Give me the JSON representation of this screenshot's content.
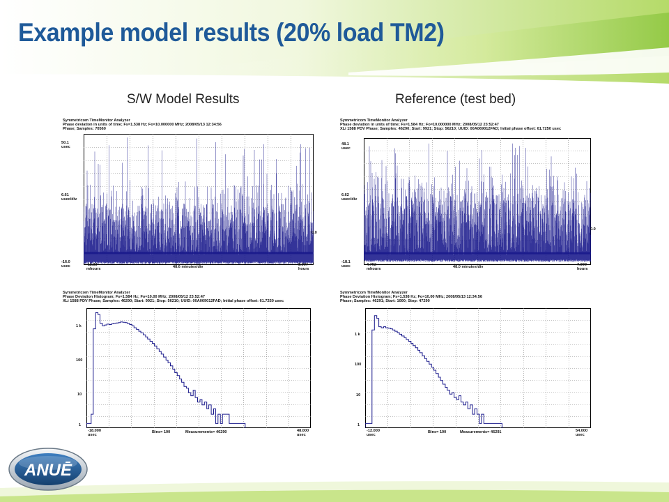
{
  "slide": {
    "title": "Example model results (20% load TM2)",
    "caption_left": "S/W Model Results",
    "caption_right": "Reference (test bed)",
    "logo_text": "ANUĒ",
    "colors": {
      "title": "#1f5a99",
      "trace": "#1a1a8c",
      "accent_green": "#8cc63f"
    }
  },
  "chart_data": [
    {
      "type": "line",
      "name": "model-phase",
      "header": [
        "Symmetricom TimeMonitor Analyzer",
        "Phase deviation in units of time;   Fs=1.538 Hz; Fo=10.000000 MHz; 2008/05/13 12:34:56",
        "Phase;   Samples: 70560"
      ],
      "y_top": "50.1",
      "y_top_unit": "usec",
      "y_mid": "6.61",
      "y_mid_unit": "usec/div",
      "y_bottom": "-16.0",
      "y_bottom_unit": "usec",
      "zero_label": "0.0",
      "x_left": "-11.33",
      "x_left_unit": "mhours",
      "x_mid": "48.6 minutes/div",
      "x_right": "8.007",
      "x_right_unit": "hours",
      "ylim": [
        -16.0,
        50.1
      ],
      "noise": {
        "floor": -15.5,
        "band_low": -11,
        "band_high": 15,
        "spike_max": 50.1,
        "spike_typ": 25
      }
    },
    {
      "type": "line",
      "name": "reference-phase",
      "header": [
        "Symmetricom TimeMonitor Analyzer",
        "Phase deviation in units of time;   Fs=1.584 Hz; Fo=10.000000 MHz; 2008/05/12  23:52:47",
        "XLi 1588 PDV Phase;   Samples: 46290;   Start: 9921;   Stop: 56210;   UUID: 00A069012FAD;   Initial phase offset: 61.7250 usec"
      ],
      "y_top": "48.1",
      "y_top_unit": "usec",
      "y_mid": "6.62",
      "y_mid_unit": "usec/div",
      "y_bottom": "-18.1",
      "y_bottom_unit": "usec",
      "zero_label": "0.0",
      "x_left": "4.792",
      "x_left_unit": "mhours",
      "x_mid": "48.0 minutes/div",
      "x_right": "7.999",
      "x_right_unit": "hours",
      "ylim": [
        -18.1,
        48.1
      ],
      "noise": {
        "floor": -16.5,
        "band_low": -13,
        "band_high": 20,
        "spike_max": 46,
        "spike_typ": 30
      }
    },
    {
      "type": "histogram",
      "name": "model-histogram",
      "header": [
        "Symmetricom TimeMonitor Analyzer",
        "Phase Deviation Histogram;   Fs=1.584 Hz; Fo=10.00 MHz; 2008/05/12  23:52:47",
        "XLi 1588 PDV Phase;   Samples: 46290;   Start: 9921;   Stop: 56210;   UUID: 00A069012FAD;   Initial phase offset: 61.7250 usec"
      ],
      "y_scale": "log",
      "y_ticks": [
        "1 k",
        "100",
        "10",
        "1"
      ],
      "x_left": "-18.000",
      "x_left_unit": "usec",
      "bins_label": "Bins= 100",
      "measurements_label": "Measurements= 46290",
      "x_right": "48.000",
      "x_right_unit": "usec",
      "xlim": [
        -18.0,
        48.0
      ],
      "points": [
        [
          -18.0,
          1
        ],
        [
          -17.3,
          1
        ],
        [
          -16.7,
          2
        ],
        [
          -16.0,
          1200
        ],
        [
          -15.3,
          4000
        ],
        [
          -14.7,
          3500
        ],
        [
          -14.0,
          1800
        ],
        [
          -13.3,
          1500
        ],
        [
          -12.7,
          1600
        ],
        [
          -12.0,
          1700
        ],
        [
          -11.3,
          1650
        ],
        [
          -10.7,
          1750
        ],
        [
          -10.0,
          1800
        ],
        [
          -9.3,
          1850
        ],
        [
          -8.7,
          1900
        ],
        [
          -8.0,
          2000
        ],
        [
          -7.3,
          1950
        ],
        [
          -6.7,
          1900
        ],
        [
          -6.0,
          1800
        ],
        [
          -5.3,
          1650
        ],
        [
          -4.7,
          1500
        ],
        [
          -4.0,
          1300
        ],
        [
          -3.3,
          1150
        ],
        [
          -2.7,
          1000
        ],
        [
          -2.0,
          880
        ],
        [
          -1.3,
          760
        ],
        [
          -0.7,
          650
        ],
        [
          0.0,
          560
        ],
        [
          0.7,
          470
        ],
        [
          1.3,
          400
        ],
        [
          2.0,
          330
        ],
        [
          2.7,
          270
        ],
        [
          3.3,
          220
        ],
        [
          4.0,
          180
        ],
        [
          4.7,
          145
        ],
        [
          5.3,
          115
        ],
        [
          6.0,
          95
        ],
        [
          6.7,
          75
        ],
        [
          7.3,
          58
        ],
        [
          8.0,
          45
        ],
        [
          8.7,
          36
        ],
        [
          9.3,
          28
        ],
        [
          10.0,
          22
        ],
        [
          10.7,
          16
        ],
        [
          11.3,
          14
        ],
        [
          12.0,
          10
        ],
        [
          12.7,
          8
        ],
        [
          13.3,
          12
        ],
        [
          14.0,
          7
        ],
        [
          14.7,
          5
        ],
        [
          15.3,
          6
        ],
        [
          16.0,
          4
        ],
        [
          16.7,
          5
        ],
        [
          17.3,
          3
        ],
        [
          18.0,
          4
        ],
        [
          18.7,
          2
        ],
        [
          19.3,
          3
        ],
        [
          20.0,
          1
        ],
        [
          20.7,
          2
        ],
        [
          21.3,
          1
        ],
        [
          22.0,
          2
        ],
        [
          22.7,
          2
        ],
        [
          23.3,
          2
        ],
        [
          24.0,
          1
        ],
        [
          24.7,
          1
        ],
        [
          25.3,
          1
        ],
        [
          26.0,
          1
        ],
        [
          26.7,
          1
        ],
        [
          27.3,
          1
        ],
        [
          28.0,
          1
        ]
      ]
    },
    {
      "type": "histogram",
      "name": "reference-histogram",
      "header": [
        "Symmetricom TimeMonitor Analyzer",
        "Phase Deviation Histogram;   Fs=1.538 Hz; Fo=10.00 MHz; 2008/05/13 12:34:56",
        "Phase;   Samples: 46291;   Start: 1000;   Stop: 47290"
      ],
      "y_scale": "log",
      "y_ticks": [
        "1 k",
        "100",
        "10",
        "1"
      ],
      "x_left": "-12.000",
      "x_left_unit": "usec",
      "bins_label": "Bins= 100",
      "measurements_label": "Measurements= 46291",
      "x_right": "54.000",
      "x_right_unit": "usec",
      "xlim": [
        -12.0,
        54.0
      ],
      "points": [
        [
          -12.0,
          1
        ],
        [
          -11.3,
          1
        ],
        [
          -10.7,
          1
        ],
        [
          -10.0,
          1100
        ],
        [
          -9.3,
          3200
        ],
        [
          -8.7,
          2600
        ],
        [
          -8.0,
          1400
        ],
        [
          -7.3,
          1300
        ],
        [
          -6.7,
          1400
        ],
        [
          -6.0,
          1300
        ],
        [
          -5.3,
          1250
        ],
        [
          -4.7,
          1200
        ],
        [
          -4.0,
          1100
        ],
        [
          -3.3,
          1000
        ],
        [
          -2.7,
          900
        ],
        [
          -2.0,
          800
        ],
        [
          -1.3,
          700
        ],
        [
          -0.7,
          620
        ],
        [
          0.0,
          540
        ],
        [
          0.7,
          470
        ],
        [
          1.3,
          400
        ],
        [
          2.0,
          340
        ],
        [
          2.7,
          290
        ],
        [
          3.3,
          240
        ],
        [
          4.0,
          200
        ],
        [
          4.7,
          160
        ],
        [
          5.3,
          130
        ],
        [
          6.0,
          105
        ],
        [
          6.7,
          85
        ],
        [
          7.3,
          68
        ],
        [
          8.0,
          54
        ],
        [
          8.7,
          42
        ],
        [
          9.3,
          32
        ],
        [
          10.0,
          25
        ],
        [
          10.7,
          19
        ],
        [
          11.3,
          15
        ],
        [
          12.0,
          12
        ],
        [
          12.7,
          9
        ],
        [
          13.3,
          10
        ],
        [
          14.0,
          7
        ],
        [
          14.7,
          6
        ],
        [
          15.3,
          8
        ],
        [
          16.0,
          5
        ],
        [
          16.7,
          4
        ],
        [
          17.3,
          5
        ],
        [
          18.0,
          3
        ],
        [
          18.7,
          4
        ],
        [
          19.3,
          2
        ],
        [
          20.0,
          3
        ],
        [
          20.7,
          2
        ],
        [
          21.3,
          1
        ],
        [
          22.0,
          2
        ],
        [
          22.7,
          1
        ],
        [
          23.3,
          1
        ],
        [
          24.0,
          1
        ],
        [
          24.7,
          1
        ],
        [
          25.3,
          1
        ],
        [
          26.0,
          1
        ],
        [
          26.7,
          1
        ],
        [
          27.3,
          1
        ]
      ]
    }
  ]
}
